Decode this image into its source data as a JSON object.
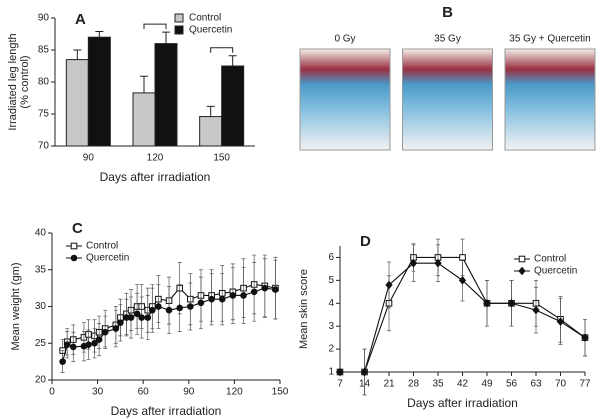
{
  "chart_data": [
    {
      "type": "bar",
      "title": "A",
      "ylabel": [
        "Irradiated leg length",
        "(% control)"
      ],
      "xlabel": "Days after irradiation",
      "categories": [
        "90",
        "120",
        "150"
      ],
      "ylim": [
        70,
        90
      ],
      "yticks": [
        70,
        75,
        80,
        85,
        90
      ],
      "legend": "upper right",
      "significant": [
        false,
        true,
        true
      ],
      "series": [
        {
          "name": "Control",
          "color": "#c8c8c8",
          "values": [
            83.5,
            78.3,
            74.6
          ],
          "errors": [
            1.5,
            2.6,
            1.6
          ]
        },
        {
          "name": "Quercetin",
          "color": "#111111",
          "values": [
            87,
            86,
            82.5
          ],
          "errors": [
            0.9,
            1.8,
            1.6
          ]
        }
      ]
    },
    {
      "type": "images",
      "title": "B",
      "labels": [
        "0 Gy",
        "35 Gy",
        "35 Gy + Quercetin"
      ]
    },
    {
      "type": "line",
      "title": "C",
      "ylabel": "Mean weight (gm)",
      "xlabel": "Days after irradiation",
      "xlim": [
        0,
        150
      ],
      "xticks": [
        0,
        30,
        60,
        90,
        120,
        150
      ],
      "ylim": [
        20,
        40
      ],
      "yticks": [
        20,
        25,
        30,
        35,
        40
      ],
      "legend": "upper left",
      "x": [
        7,
        10,
        14,
        21,
        24,
        28,
        31,
        35,
        42,
        45,
        49,
        52,
        56,
        59,
        63,
        66,
        70,
        77,
        84,
        91,
        98,
        105,
        112,
        119,
        126,
        133,
        140,
        147
      ],
      "series": [
        {
          "name": "Control",
          "color": "#111111",
          "marker": "square-open",
          "values": [
            24,
            25.2,
            25.5,
            25.8,
            26.2,
            26,
            26.5,
            27,
            27.5,
            28.5,
            29,
            29.5,
            30,
            30,
            29.5,
            30,
            31,
            30.8,
            32.5,
            31,
            31.5,
            31.5,
            31.8,
            32,
            32.5,
            33,
            32.8,
            32.5
          ],
          "errors": [
            1.5,
            1.8,
            2,
            2,
            2,
            2.2,
            2.2,
            2.5,
            2.5,
            2.5,
            2.8,
            2.8,
            3,
            3,
            3,
            3,
            3.2,
            3.2,
            3.5,
            3.5,
            3.5,
            3.5,
            3.8,
            3.8,
            4,
            4,
            4.2,
            4.2
          ]
        },
        {
          "name": "Quercetin",
          "color": "#111111",
          "marker": "circle-filled",
          "values": [
            22.5,
            24.8,
            24.5,
            24.6,
            24.8,
            25,
            25.5,
            26.5,
            27,
            27.8,
            28.5,
            28.5,
            29,
            28.5,
            28.5,
            29.5,
            30,
            29.5,
            29.8,
            30,
            30.5,
            31,
            31,
            31.5,
            31.5,
            32,
            32.5,
            32.3
          ],
          "errors": [
            1.5,
            1.8,
            2,
            2,
            2,
            2,
            2.2,
            2.2,
            2.5,
            2.5,
            2.5,
            2.8,
            2.8,
            2.8,
            3,
            3,
            3,
            3.2,
            3.2,
            3.2,
            3.5,
            3.5,
            3.5,
            3.8,
            3.8,
            4,
            4,
            4
          ]
        }
      ]
    },
    {
      "type": "line",
      "title": "D",
      "ylabel": "Mean skin score",
      "xlabel": "Days after irradiation",
      "xlim": [
        7,
        77
      ],
      "xticks": [
        7,
        14,
        21,
        28,
        35,
        42,
        49,
        56,
        63,
        70,
        77
      ],
      "ylim": [
        1,
        6.5
      ],
      "yticks": [
        1,
        2,
        3,
        4,
        5,
        6
      ],
      "legend": "upper right",
      "x": [
        7,
        14,
        21,
        28,
        35,
        42,
        49,
        56,
        63,
        70,
        77
      ],
      "series": [
        {
          "name": "Control",
          "color": "#111111",
          "marker": "square-open",
          "values": [
            1,
            1,
            4,
            6,
            6,
            6,
            4,
            4,
            4,
            3.3,
            2.5
          ],
          "errors": [
            0,
            1,
            1.2,
            0.6,
            0.8,
            0.8,
            1,
            1,
            1,
            1,
            0.8
          ]
        },
        {
          "name": "Quercetin",
          "color": "#111111",
          "marker": "diamond-filled",
          "values": [
            1,
            1,
            4.8,
            5.75,
            5.75,
            5,
            4,
            4,
            3.7,
            3.2,
            2.5
          ],
          "errors": [
            0,
            1,
            1,
            0.8,
            0.8,
            0.9,
            1,
            1,
            1,
            1,
            0.8
          ]
        }
      ]
    }
  ]
}
